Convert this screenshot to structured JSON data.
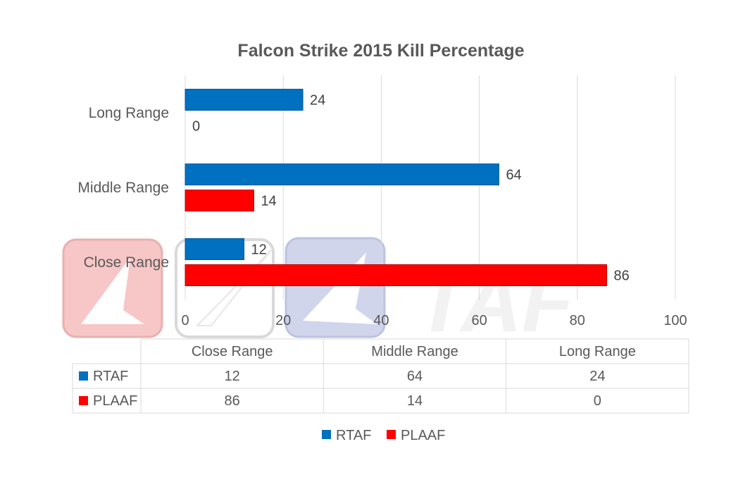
{
  "chart_data": {
    "type": "bar",
    "orientation": "horizontal",
    "title": "Falcon Strike 2015 Kill Percentage",
    "categories": [
      "Close Range",
      "Middle Range",
      "Long Range"
    ],
    "series": [
      {
        "name": "RTAF",
        "color": "#0070c0",
        "values": [
          12,
          64,
          24
        ]
      },
      {
        "name": "PLAAF",
        "color": "#ff0000",
        "values": [
          86,
          14,
          0
        ]
      }
    ],
    "xlim": [
      0,
      100
    ],
    "xticks": [
      0,
      20,
      40,
      60,
      80,
      100
    ],
    "grid": true,
    "legend": "bottom",
    "data_table": true
  },
  "watermark": {
    "text": "TAF"
  }
}
